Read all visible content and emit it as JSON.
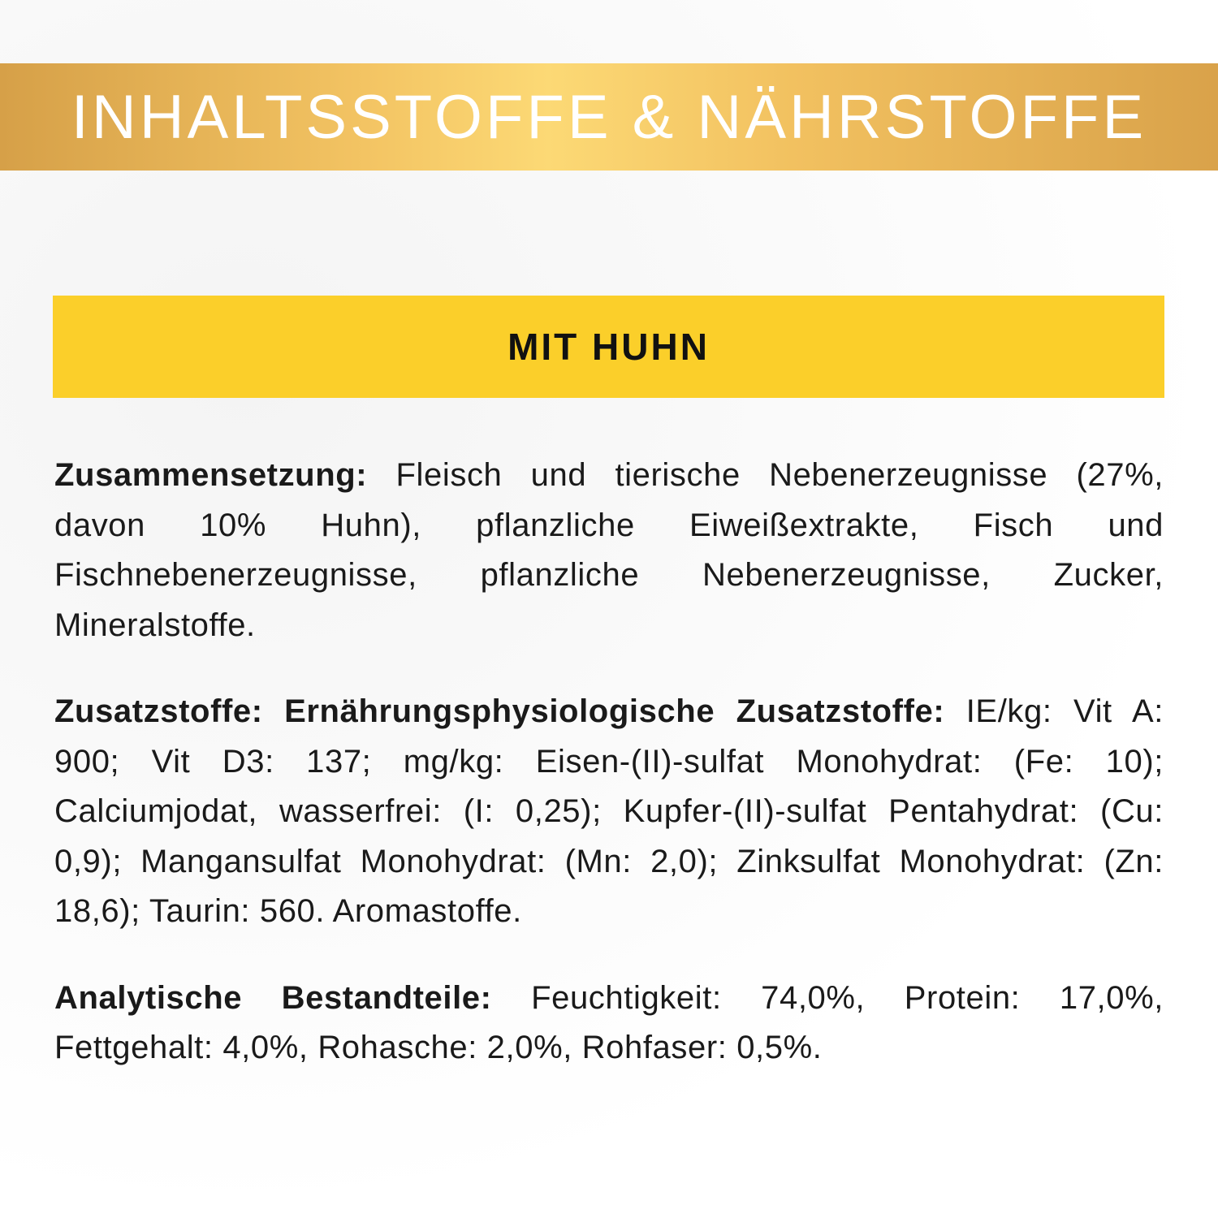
{
  "header": {
    "title": "INHALTSSTOFFE & NÄHRSTOFFE"
  },
  "variant": {
    "label": "MIT HUHN"
  },
  "sections": [
    {
      "label": "Zusammensetzung:",
      "text": "Fleisch und tierische Nebenerzeugnisse (27%, davon 10% Huhn), pflanzliche Eiweißextrakte, Fisch und Fischnebenerzeugnisse, pflanzliche Nebenerzeugnisse, Zucker, Mineralstoffe."
    },
    {
      "label": "Zusatzstoffe: Ernährungsphysiologische Zusatzstoffe:",
      "text": "IE/kg: Vit A: 900; Vit D3: 137; mg/kg: Eisen-(II)-sulfat Monohydrat: (Fe: 10); Calciumjodat, wasserfrei: (I: 0,25); Kupfer-(II)-sulfat Pentahydrat: (Cu: 0,9); Mangansulfat Monohydrat: (Mn: 2,0); Zinksulfat Monohydrat: (Zn: 18,6); Taurin: 560. Aromastoffe."
    },
    {
      "label": "Analytische Bestandteile:",
      "text": "Feuchtigkeit: 74,0%, Protein: 17,0%, Fettgehalt: 4,0%, Rohasche: 2,0%, Rohfaser: 0,5%."
    }
  ],
  "colors": {
    "band_gold": "#e8b655",
    "variant_yellow": "#fbcf2a"
  }
}
